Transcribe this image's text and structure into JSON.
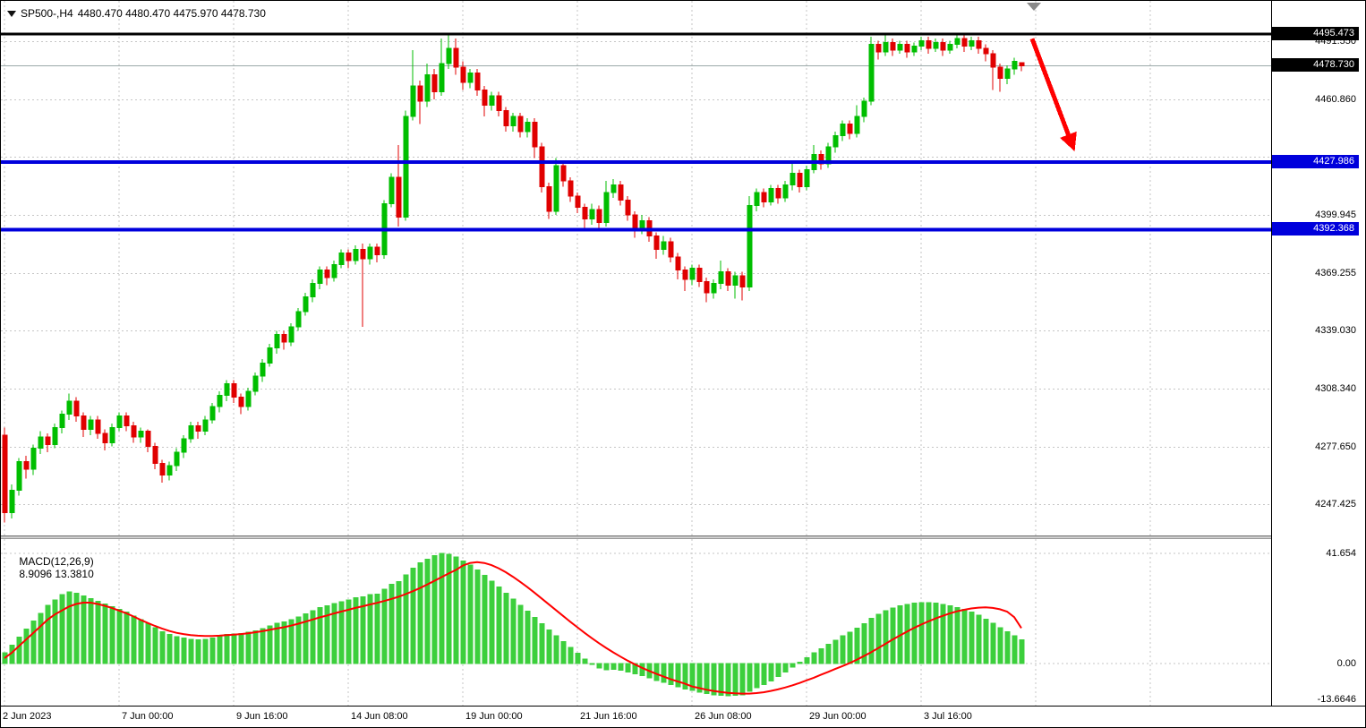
{
  "header": {
    "symbol_period": "SP500-,H4",
    "ohlc_values": "4480.470 4480.470 4475.970 4478.730"
  },
  "indicator": {
    "name": "MACD(12,26,9)",
    "values": "8.9096 13.3810"
  },
  "chart_data": {
    "type": "candlestick",
    "symbol": "SP500-",
    "timeframe": "H4",
    "colors": {
      "candle_up": "#00BE00",
      "candle_down": "#E00000",
      "grid": "#c6c6c6",
      "histogram": "#3CCF3C",
      "signal_line": "#FF0000",
      "level_black": "#000000",
      "level_blue": "#0000DC",
      "bid_line": "#9AA8A8",
      "arrow": "#FF0000"
    },
    "price_range": [
      4232,
      4512
    ],
    "price_axis": {
      "grid_lines": [
        4491.55,
        4460.86,
        4430.635,
        4399.945,
        4369.255,
        4339.03,
        4308.34,
        4277.65,
        4247.425
      ],
      "grid_labels": [
        {
          "text": "4491.550",
          "price": 4491.55
        },
        {
          "text": "4460.860",
          "price": 4460.86
        },
        {
          "text": "4399.945",
          "price": 4399.945
        },
        {
          "text": "4369.255",
          "price": 4369.255
        },
        {
          "text": "4339.030",
          "price": 4339.03
        },
        {
          "text": "4308.340",
          "price": 4308.34
        },
        {
          "text": "4277.650",
          "price": 4277.65
        },
        {
          "text": "4247.425",
          "price": 4247.425
        }
      ],
      "special_labels": [
        {
          "text": "4495.473",
          "price": 4495.473,
          "bg": "#000000"
        },
        {
          "text": "4478.730",
          "price": 4478.73,
          "bg": "#000000"
        },
        {
          "text": "4427.986",
          "price": 4427.986,
          "bg": "#0000DC"
        },
        {
          "text": "4392.368",
          "price": 4392.368,
          "bg": "#0000DC"
        }
      ]
    },
    "levels": [
      {
        "price": 4478.73,
        "color": "#9AA8A8",
        "width": 1,
        "z": "below"
      },
      {
        "price": 4495.473,
        "color": "#000000",
        "width": 3,
        "z": "above"
      },
      {
        "price": 4427.986,
        "color": "#0000DC",
        "width": 4,
        "z": "above"
      },
      {
        "price": 4392.368,
        "color": "#0000DC",
        "width": 4,
        "z": "above"
      }
    ],
    "time_axis": {
      "labels": [
        {
          "text": "2 Jun 2023",
          "bar": 0
        },
        {
          "text": "7 Jun 00:00",
          "bar": 16
        },
        {
          "text": "9 Jun 16:00",
          "bar": 32
        },
        {
          "text": "14 Jun 08:00",
          "bar": 48
        },
        {
          "text": "19 Jun 00:00",
          "bar": 64
        },
        {
          "text": "21 Jun 16:00",
          "bar": 80
        },
        {
          "text": "26 Jun 08:00",
          "bar": 96
        },
        {
          "text": "29 Jun 00:00",
          "bar": 112
        },
        {
          "text": "3 Jul 16:00",
          "bar": 128
        }
      ],
      "grid_bars": [
        0,
        16,
        32,
        48,
        64,
        80,
        96,
        112,
        128,
        144,
        160
      ]
    },
    "candles": [
      [
        4284,
        4288,
        4238,
        4243
      ],
      [
        4243,
        4258,
        4240,
        4255
      ],
      [
        4255,
        4272,
        4252,
        4270
      ],
      [
        4270,
        4273,
        4261,
        4266
      ],
      [
        4266,
        4279,
        4263,
        4277
      ],
      [
        4277,
        4286,
        4274,
        4283
      ],
      [
        4283,
        4285,
        4275,
        4279
      ],
      [
        4279,
        4290,
        4277,
        4288
      ],
      [
        4288,
        4297,
        4285,
        4295
      ],
      [
        4295,
        4306,
        4292,
        4302
      ],
      [
        4302,
        4304,
        4291,
        4294
      ],
      [
        4294,
        4296,
        4283,
        4287
      ],
      [
        4287,
        4294,
        4284,
        4292
      ],
      [
        4292,
        4294,
        4282,
        4285
      ],
      [
        4285,
        4287,
        4276,
        4280
      ],
      [
        4280,
        4290,
        4278,
        4288
      ],
      [
        4288,
        4296,
        4286,
        4294
      ],
      [
        4294,
        4296,
        4286,
        4289
      ],
      [
        4289,
        4291,
        4280,
        4283
      ],
      [
        4283,
        4288,
        4280,
        4286
      ],
      [
        4286,
        4287,
        4275,
        4278
      ],
      [
        4278,
        4280,
        4266,
        4269
      ],
      [
        4269,
        4271,
        4259,
        4263
      ],
      [
        4263,
        4270,
        4260,
        4268
      ],
      [
        4268,
        4277,
        4265,
        4275
      ],
      [
        4275,
        4284,
        4272,
        4282
      ],
      [
        4282,
        4291,
        4280,
        4289
      ],
      [
        4289,
        4291,
        4282,
        4286
      ],
      [
        4286,
        4294,
        4284,
        4292
      ],
      [
        4292,
        4301,
        4290,
        4299
      ],
      [
        4299,
        4307,
        4296,
        4305
      ],
      [
        4305,
        4313,
        4302,
        4311
      ],
      [
        4311,
        4313,
        4301,
        4304
      ],
      [
        4304,
        4306,
        4295,
        4299
      ],
      [
        4299,
        4309,
        4297,
        4307
      ],
      [
        4307,
        4317,
        4305,
        4315
      ],
      [
        4315,
        4324,
        4312,
        4322
      ],
      [
        4322,
        4332,
        4320,
        4330
      ],
      [
        4330,
        4339,
        4327,
        4337
      ],
      [
        4337,
        4339,
        4329,
        4333
      ],
      [
        4333,
        4343,
        4331,
        4341
      ],
      [
        4341,
        4351,
        4339,
        4349
      ],
      [
        4349,
        4359,
        4347,
        4357
      ],
      [
        4357,
        4366,
        4354,
        4364
      ],
      [
        4364,
        4373,
        4361,
        4371
      ],
      [
        4371,
        4373,
        4363,
        4367
      ],
      [
        4367,
        4376,
        4365,
        4374
      ],
      [
        4374,
        4382,
        4372,
        4380
      ],
      [
        4380,
        4382,
        4372,
        4376
      ],
      [
        4376,
        4384,
        4374,
        4382
      ],
      [
        4382,
        4385,
        4341,
        4377
      ],
      [
        4377,
        4385,
        4374,
        4383
      ],
      [
        4383,
        4385,
        4375,
        4379
      ],
      [
        4379,
        4408,
        4377,
        4406
      ],
      [
        4406,
        4422,
        4404,
        4420
      ],
      [
        4420,
        4437,
        4394,
        4399
      ],
      [
        4399,
        4455,
        4397,
        4452
      ],
      [
        4452,
        4487,
        4450,
        4468
      ],
      [
        4468,
        4471,
        4448,
        4460
      ],
      [
        4460,
        4480,
        4457,
        4474
      ],
      [
        4474,
        4477,
        4461,
        4465
      ],
      [
        4465,
        4493,
        4463,
        4480
      ],
      [
        4480,
        4495,
        4477,
        4488
      ],
      [
        4488,
        4493,
        4474,
        4478
      ],
      [
        4478,
        4481,
        4466,
        4470
      ],
      [
        4470,
        4477,
        4467,
        4475
      ],
      [
        4475,
        4477,
        4463,
        4466
      ],
      [
        4466,
        4468,
        4452,
        4458
      ],
      [
        4458,
        4465,
        4455,
        4463
      ],
      [
        4463,
        4465,
        4452,
        4455
      ],
      [
        4455,
        4457,
        4444,
        4447
      ],
      [
        4447,
        4454,
        4444,
        4452
      ],
      [
        4452,
        4454,
        4441,
        4444
      ],
      [
        4444,
        4451,
        4441,
        4449
      ],
      [
        4449,
        4451,
        4430,
        4436
      ],
      [
        4436,
        4438,
        4412,
        4415
      ],
      [
        4415,
        4417,
        4398,
        4402
      ],
      [
        4402,
        4430,
        4400,
        4426
      ],
      [
        4426,
        4428,
        4415,
        4418
      ],
      [
        4418,
        4420,
        4407,
        4410
      ],
      [
        4410,
        4412,
        4401,
        4404
      ],
      [
        4404,
        4406,
        4392,
        4398
      ],
      [
        4398,
        4406,
        4395,
        4403
      ],
      [
        4403,
        4405,
        4393,
        4396
      ],
      [
        4396,
        4418,
        4394,
        4412
      ],
      [
        4412,
        4419,
        4409,
        4416
      ],
      [
        4416,
        4418,
        4405,
        4408
      ],
      [
        4408,
        4410,
        4397,
        4400
      ],
      [
        4400,
        4402,
        4388,
        4393
      ],
      [
        4393,
        4400,
        4390,
        4397
      ],
      [
        4397,
        4399,
        4386,
        4389
      ],
      [
        4389,
        4391,
        4377,
        4382
      ],
      [
        4382,
        4389,
        4379,
        4386
      ],
      [
        4386,
        4388,
        4375,
        4378
      ],
      [
        4378,
        4380,
        4366,
        4371
      ],
      [
        4371,
        4373,
        4360,
        4366
      ],
      [
        4366,
        4374,
        4363,
        4372
      ],
      [
        4372,
        4374,
        4362,
        4365
      ],
      [
        4365,
        4367,
        4354,
        4359
      ],
      [
        4359,
        4366,
        4356,
        4364
      ],
      [
        4364,
        4376,
        4361,
        4370
      ],
      [
        4370,
        4372,
        4360,
        4363
      ],
      [
        4363,
        4370,
        4356,
        4368
      ],
      [
        4368,
        4370,
        4355,
        4362
      ],
      [
        4362,
        4410,
        4360,
        4405
      ],
      [
        4405,
        4414,
        4402,
        4412
      ],
      [
        4412,
        4414,
        4404,
        4407
      ],
      [
        4407,
        4416,
        4405,
        4414
      ],
      [
        4414,
        4416,
        4406,
        4409
      ],
      [
        4409,
        4418,
        4407,
        4416
      ],
      [
        4416,
        4428,
        4413,
        4422
      ],
      [
        4422,
        4424,
        4412,
        4415
      ],
      [
        4415,
        4426,
        4413,
        4424
      ],
      [
        4424,
        4437,
        4422,
        4432
      ],
      [
        4432,
        4434,
        4424,
        4427
      ],
      [
        4427,
        4438,
        4425,
        4436
      ],
      [
        4436,
        4444,
        4433,
        4442
      ],
      [
        4442,
        4450,
        4439,
        4448
      ],
      [
        4448,
        4450,
        4440,
        4443
      ],
      [
        4443,
        4458,
        4441,
        4452
      ],
      [
        4452,
        4462,
        4449,
        4460
      ],
      [
        4460,
        4494,
        4458,
        4490
      ],
      [
        4490,
        4492,
        4482,
        4486
      ],
      [
        4486,
        4496,
        4484,
        4491
      ],
      [
        4491,
        4493,
        4484,
        4487
      ],
      [
        4487,
        4492,
        4485,
        4490
      ],
      [
        4490,
        4492,
        4483,
        4486
      ],
      [
        4486,
        4491,
        4484,
        4489
      ],
      [
        4489,
        4494,
        4487,
        4492
      ],
      [
        4492,
        4494,
        4485,
        4488
      ],
      [
        4488,
        4493,
        4486,
        4491
      ],
      [
        4491,
        4493,
        4484,
        4487
      ],
      [
        4487,
        4492,
        4485,
        4490
      ],
      [
        4490,
        4496,
        4488,
        4493
      ],
      [
        4493,
        4495,
        4486,
        4489
      ],
      [
        4489,
        4494,
        4487,
        4492
      ],
      [
        4492,
        4494,
        4485,
        4488
      ],
      [
        4488,
        4490,
        4481,
        4485
      ],
      [
        4485,
        4487,
        4466,
        4478
      ],
      [
        4478,
        4480,
        4465,
        4472
      ],
      [
        4472,
        4479,
        4469,
        4477
      ],
      [
        4477,
        4483,
        4474,
        4481
      ],
      [
        4480.47,
        4480.47,
        4475.97,
        4478.73
      ]
    ],
    "macd": {
      "params": "12,26,9",
      "main_value": 8.9096,
      "signal_value": 13.381,
      "range": [
        -15.6,
        46.7
      ],
      "grid_values": [
        41.654,
        0
      ],
      "axis_labels": [
        {
          "text": "41.654",
          "value": 41.654
        },
        {
          "text": "0.00",
          "value": 0
        },
        {
          "text": "-13.6646",
          "value": -13.6646
        }
      ],
      "histogram": [
        4,
        7,
        10,
        13,
        16,
        19,
        22,
        24,
        26,
        27,
        26.5,
        25.5,
        24.5,
        23.5,
        22.5,
        21.5,
        20.5,
        19.5,
        18,
        16.5,
        15,
        13.5,
        12,
        11,
        10.2,
        9.6,
        9.2,
        9,
        9.2,
        9.6,
        10.2,
        10.9,
        11.2,
        11.4,
        11.8,
        12.4,
        13.2,
        14.2,
        15.2,
        15.8,
        16.6,
        17.6,
        18.8,
        20,
        21.2,
        21.8,
        22.6,
        23.4,
        24,
        24.8,
        25.2,
        26,
        26.2,
        28,
        30,
        31,
        33.5,
        36,
        38,
        39.5,
        40.8,
        41.6,
        41.2,
        40.2,
        38.8,
        37.2,
        35.4,
        33.4,
        31.2,
        29,
        26.6,
        24.4,
        22,
        19.8,
        17.4,
        15,
        12.6,
        10.4,
        8.2,
        6,
        3.8,
        1.6,
        -0.4,
        -1.8,
        -2.4,
        -2.2,
        -2.6,
        -3.2,
        -4,
        -4.6,
        -5.4,
        -6.4,
        -7.2,
        -8,
        -8.8,
        -9.6,
        -10.2,
        -10.8,
        -11.4,
        -11.8,
        -12,
        -12.2,
        -12,
        -11.8,
        -10.6,
        -9.2,
        -8,
        -6.6,
        -5,
        -3.2,
        -1.4,
        0.4,
        2.2,
        4,
        5.6,
        7.2,
        8.8,
        10.4,
        11.8,
        13.4,
        15,
        17,
        18.6,
        20,
        21,
        21.8,
        22.4,
        22.8,
        23,
        23,
        22.8,
        22.4,
        21.8,
        21.2,
        20.4,
        19.4,
        18.2,
        16.8,
        15.2,
        13.6,
        12,
        10.4,
        8.9096
      ],
      "signal": [
        2,
        4,
        6.5,
        9,
        11.5,
        14,
        16.5,
        18.5,
        20,
        21.5,
        22.5,
        23,
        23,
        22.5,
        21.8,
        21,
        20,
        19,
        17.8,
        16.5,
        15.3,
        14.2,
        13.2,
        12.3,
        11.6,
        11.1,
        10.7,
        10.5,
        10.4,
        10.4,
        10.5,
        10.7,
        10.9,
        11.1,
        11.4,
        11.8,
        12.2,
        12.7,
        13.2,
        13.7,
        14.3,
        15,
        15.8,
        16.6,
        17.4,
        18.1,
        18.9,
        19.6,
        20.3,
        21,
        21.6,
        22.3,
        22.9,
        23.6,
        24.4,
        25.2,
        26.2,
        27.3,
        28.5,
        29.8,
        31.2,
        32.6,
        34,
        35.3,
        37,
        38,
        38.3,
        38,
        37.2,
        36,
        34.5,
        32.8,
        30.9,
        28.9,
        26.8,
        24.6,
        22.4,
        20.2,
        18,
        15.8,
        13.7,
        11.6,
        9.6,
        7.7,
        5.9,
        4.2,
        2.6,
        1.1,
        -0.3,
        -1.6,
        -2.8,
        -3.9,
        -4.9,
        -5.9,
        -6.8,
        -7.6,
        -8.7,
        -9.3,
        -9.9,
        -10.4,
        -10.8,
        -11.1,
        -11.3,
        -11.4,
        -11.4,
        -11.2,
        -10.9,
        -10.4,
        -9.8,
        -9.1,
        -8.3,
        -7.4,
        -6.4,
        -5.4,
        -4.3,
        -3.2,
        -2.1,
        -1,
        0.1,
        1.4,
        2.8,
        4.2,
        5.8,
        7.4,
        9,
        10.5,
        12,
        13.4,
        14.7,
        15.9,
        17,
        18,
        18.9,
        19.7,
        20.3,
        20.8,
        21.1,
        21.2,
        21,
        20.5,
        19.6,
        17.5,
        13.381
      ]
    },
    "annotations": {
      "arrow": {
        "x1_bar": 143.5,
        "y1_price": 4493,
        "x2_bar": 149,
        "y2_price": 4438,
        "color": "#FF0000"
      }
    }
  }
}
